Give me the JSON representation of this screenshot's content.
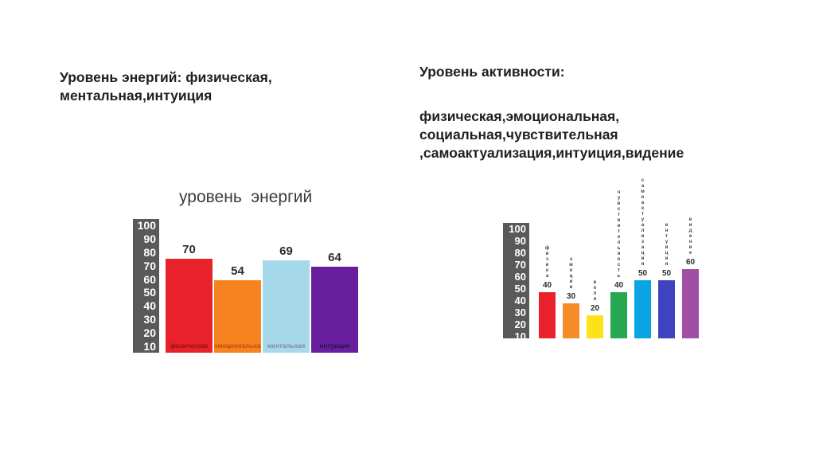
{
  "headings": {
    "left": "Уровень энергий: физическая,\nментальная,интуиция",
    "right_title": "Уровень активности:",
    "right_body": "физическая,эмоциональная,\nсоциальная,чувствительная\n,самоактуализация,интуиция,видение"
  },
  "colors": {
    "axis_bg": "#58595b",
    "axis_text": "#ffffff",
    "heading_text": "#1f1f1f",
    "value_label_text": "#2e2e2e"
  },
  "chart_data": [
    {
      "type": "bar",
      "title": "уровень  энергий",
      "categories": [
        "физическая",
        "эмоциональная",
        "ментальная",
        "интуиция"
      ],
      "values": [
        70,
        54,
        69,
        64
      ],
      "bar_colors": [
        "#e8212a",
        "#f5831f",
        "#a6d9ea",
        "#691f9d"
      ],
      "category_label_colors": [
        "#8e1318",
        "#c14b10",
        "#7b8da0",
        "#2a0f52"
      ],
      "axis_ticks": [
        100,
        90,
        80,
        70,
        60,
        50,
        40,
        30,
        20,
        10
      ],
      "ylim": [
        0,
        100
      ],
      "grid": false,
      "legend": false,
      "value_labels": "above-bar",
      "category_label_position": "inside-bottom"
    },
    {
      "type": "bar",
      "title": "",
      "categories": [
        "физика",
        "эмоции",
        "воля",
        "чувствительность",
        "самоактуализация",
        "интуиция",
        "видение"
      ],
      "values": [
        40,
        30,
        20,
        40,
        50,
        50,
        60
      ],
      "bar_colors": [
        "#e8212a",
        "#f68b28",
        "#fde21a",
        "#27a850",
        "#09a4e2",
        "#4043c0",
        "#a04fa5"
      ],
      "axis_ticks": [
        100,
        90,
        80,
        70,
        60,
        50,
        40,
        30,
        20,
        10
      ],
      "ylim": [
        0,
        100
      ],
      "grid": false,
      "legend": false,
      "value_labels": "above-bar",
      "category_label_position": "above-vertical"
    }
  ]
}
